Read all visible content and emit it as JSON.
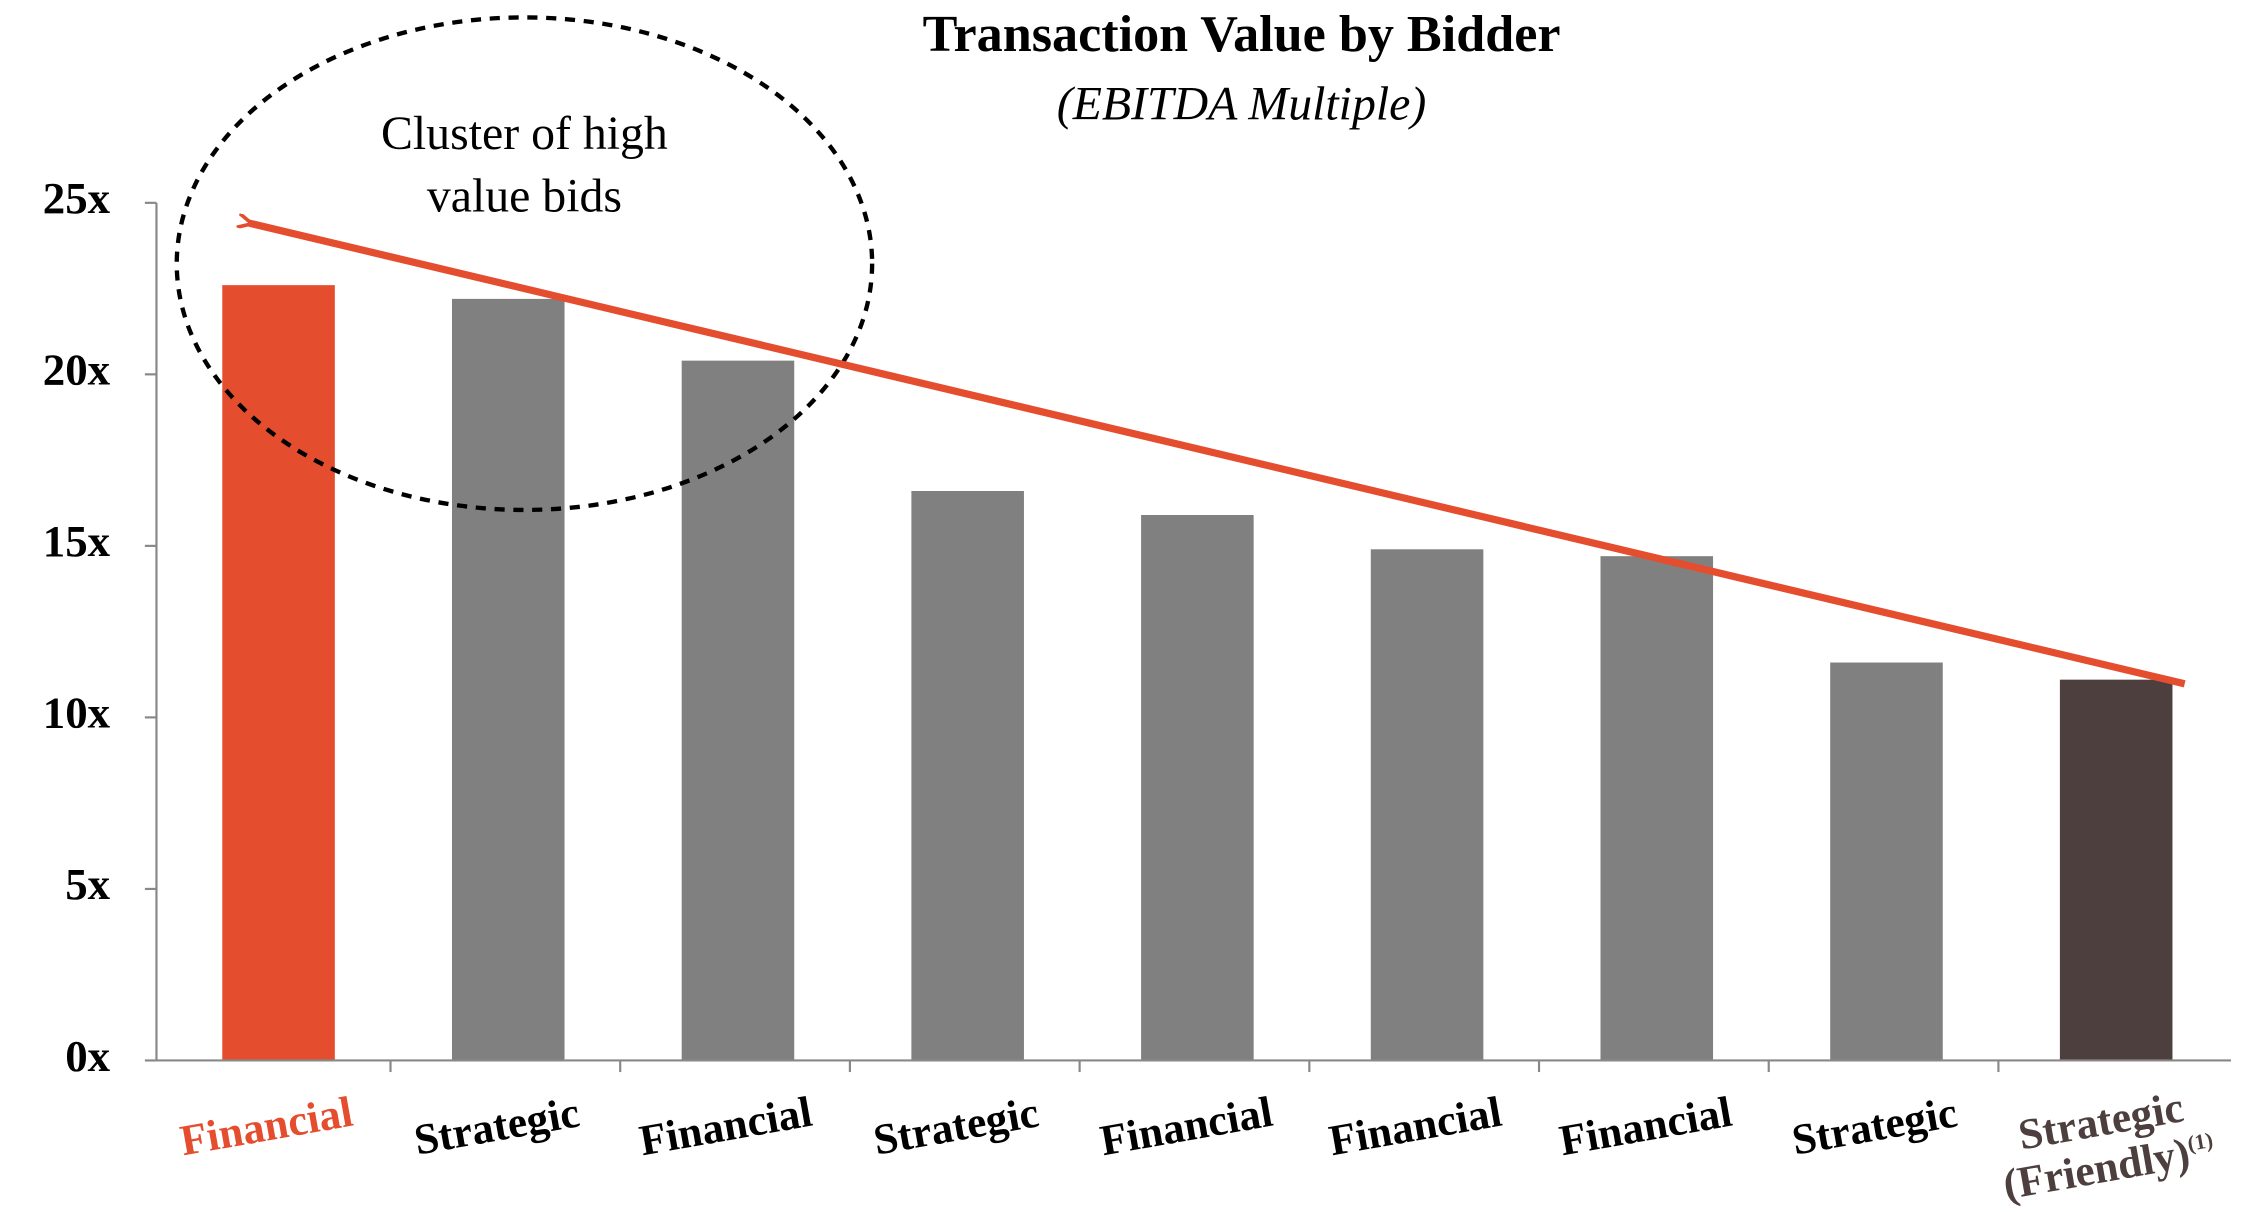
{
  "chart_data": {
    "type": "bar",
    "title": "Transaction Value by Bidder",
    "subtitle": "(EBITDA Multiple)",
    "annotation": "Cluster of high value bids",
    "categories": [
      "Financial",
      "Strategic",
      "Financial",
      "Strategic",
      "Financial",
      "Financial",
      "Financial",
      "Strategic",
      "Strategic (Friendly)"
    ],
    "category_notes": {
      "8": "(1)"
    },
    "values": [
      22.6,
      22.2,
      20.4,
      16.6,
      15.9,
      14.9,
      14.7,
      11.6,
      11.1
    ],
    "colors": [
      "#e44d2e",
      "#808080",
      "#808080",
      "#808080",
      "#808080",
      "#808080",
      "#808080",
      "#808080",
      "#4e3f3f"
    ],
    "label_colors": [
      "#e44d2e",
      "#000000",
      "#000000",
      "#000000",
      "#000000",
      "#000000",
      "#000000",
      "#000000",
      "#4e3f3f"
    ],
    "ylim": [
      0,
      25
    ],
    "yticks": [
      {
        "value": 0,
        "label": "0x"
      },
      {
        "value": 5,
        "label": "5x"
      },
      {
        "value": 10,
        "label": "10x"
      },
      {
        "value": 15,
        "label": "15x"
      },
      {
        "value": 20,
        "label": "20x"
      },
      {
        "value": 25,
        "label": "25x"
      }
    ],
    "grid": false
  }
}
